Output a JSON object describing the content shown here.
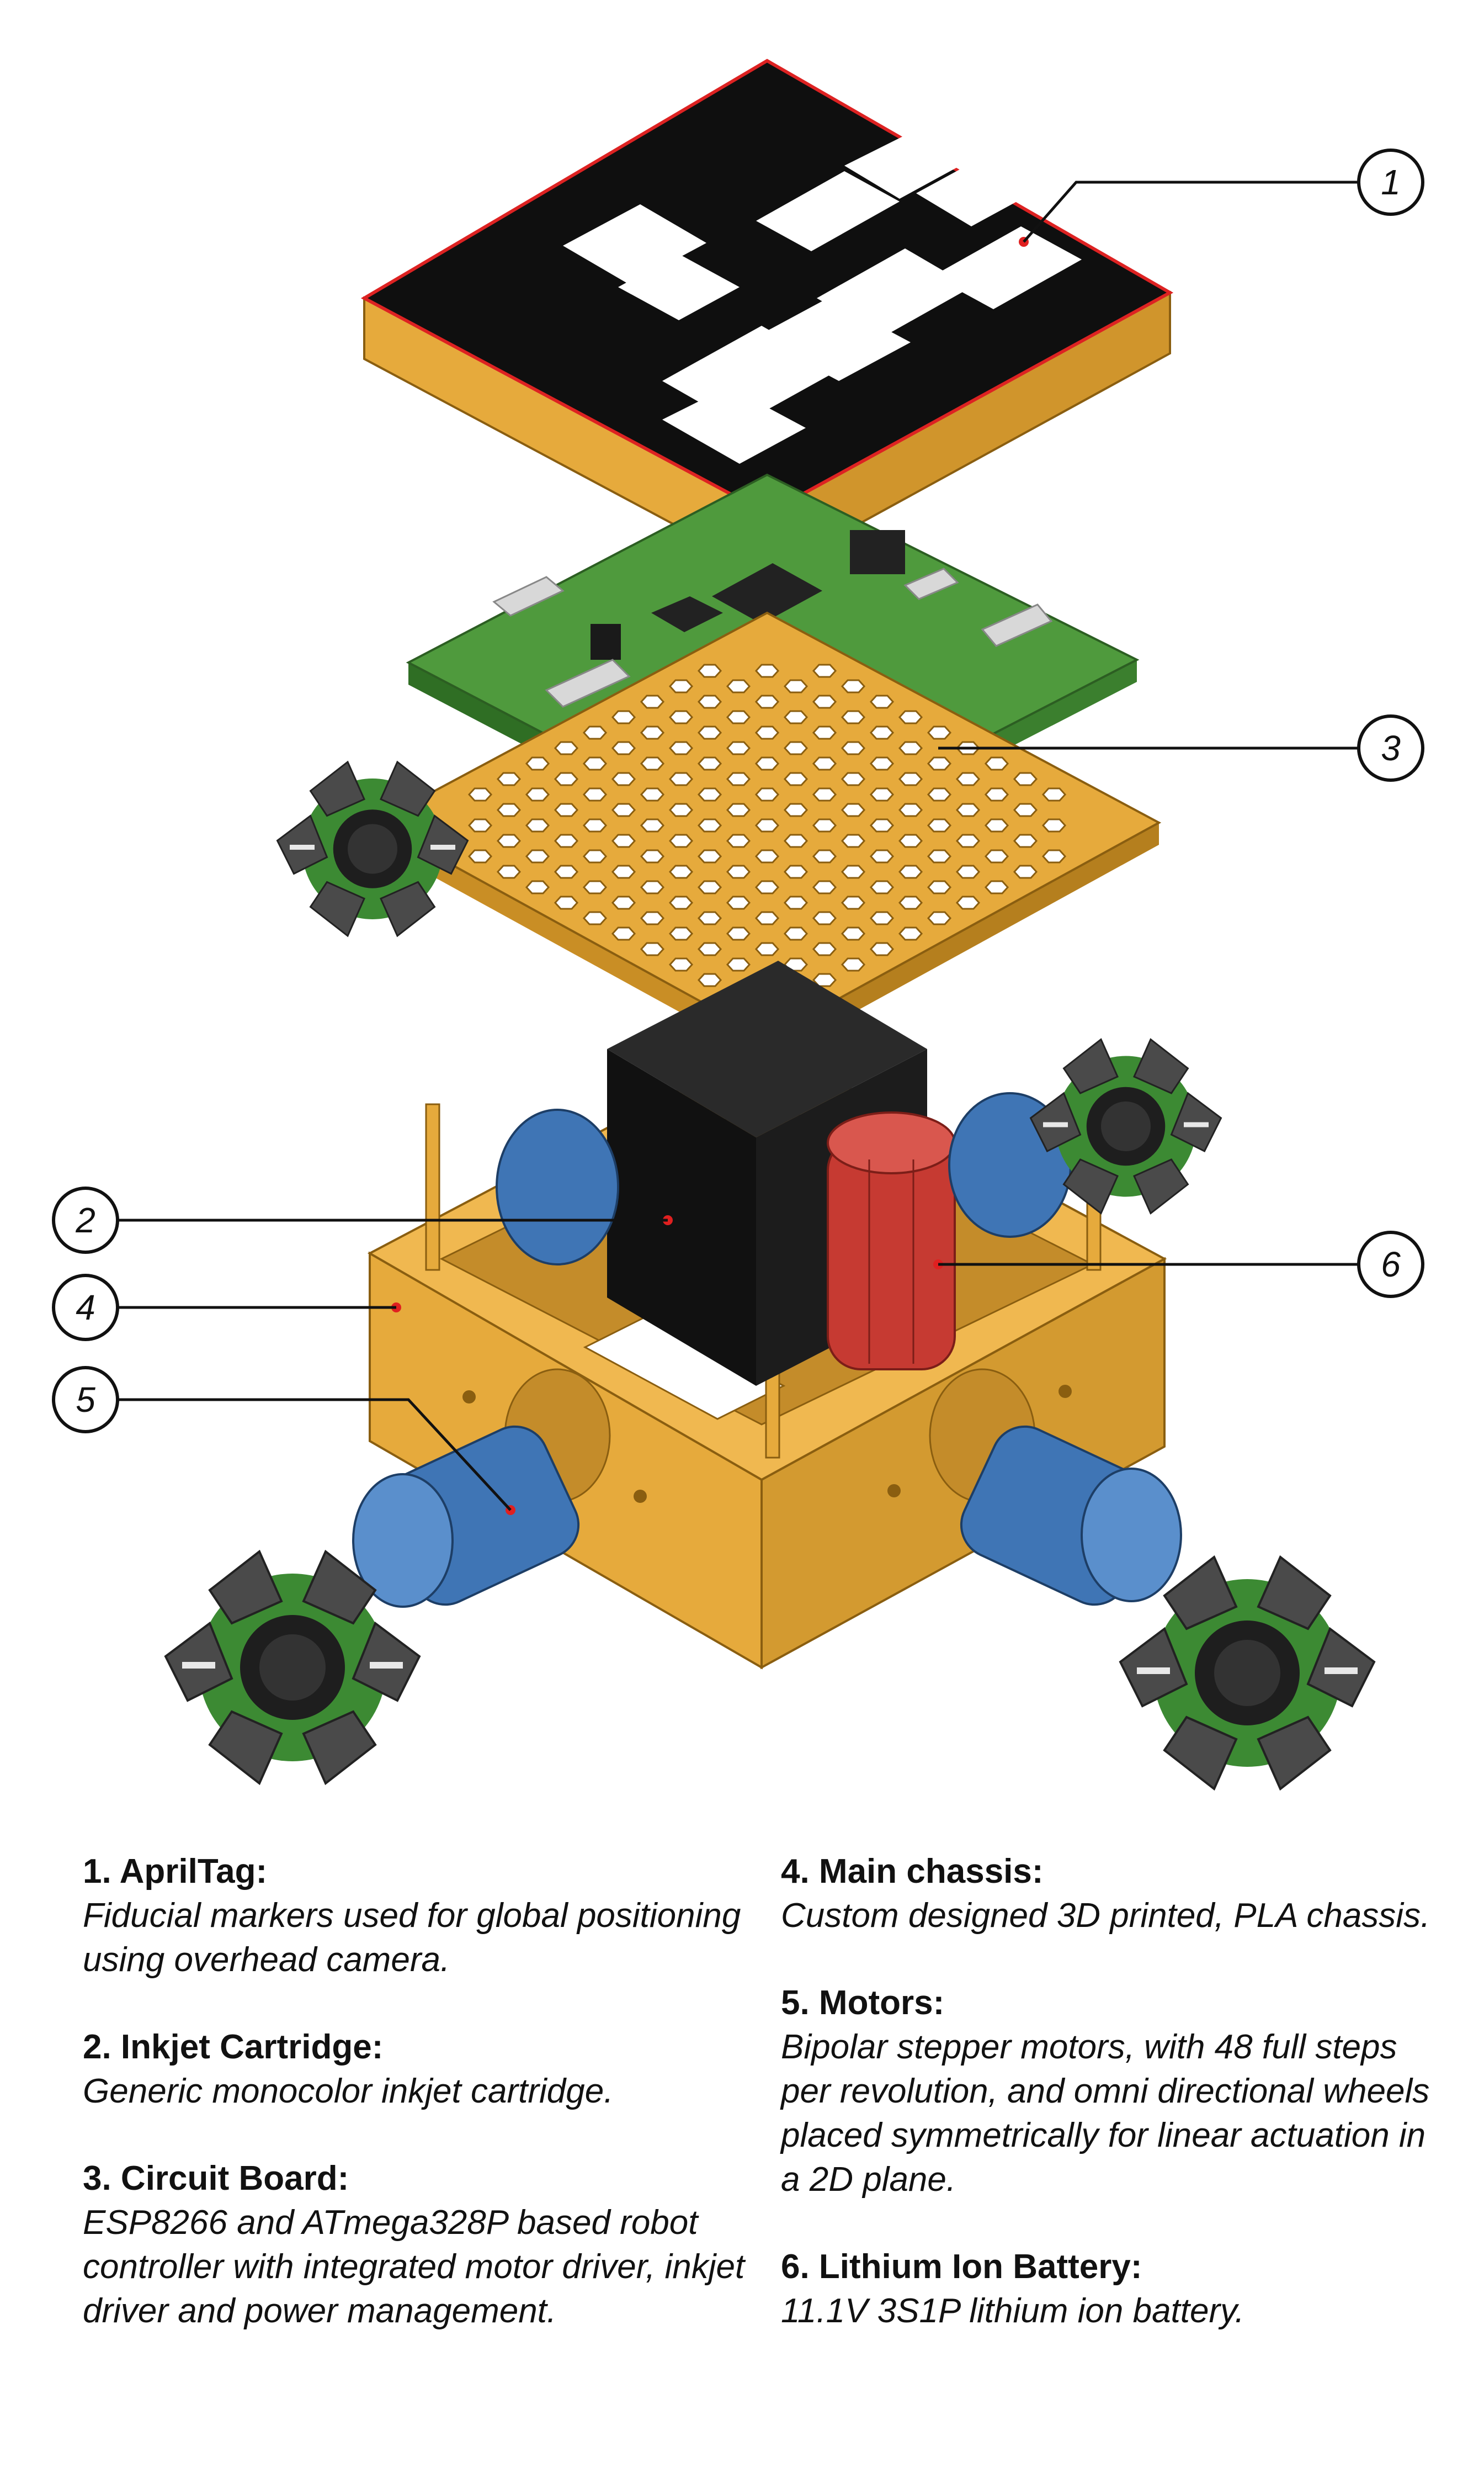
{
  "colors": {
    "pla": "#e6aa3c",
    "pla_dark": "#b57f1e",
    "pcb": "#4f9a3d",
    "motor": "#3f75b5",
    "battery": "#c63a32",
    "cartridge": "#111111",
    "tire": "#4a4a4a",
    "marker": "#e02020"
  },
  "callouts": [
    {
      "id": "1",
      "label": "1"
    },
    {
      "id": "2",
      "label": "2"
    },
    {
      "id": "3",
      "label": "3"
    },
    {
      "id": "4",
      "label": "4"
    },
    {
      "id": "5",
      "label": "5"
    },
    {
      "id": "6",
      "label": "6"
    }
  ],
  "legend": [
    {
      "title": "1. AprilTag:",
      "description": "Fiducial markers used for global positioning using overhead camera."
    },
    {
      "title": "2. Inkjet Cartridge:",
      "description": "Generic monocolor inkjet cartridge."
    },
    {
      "title": "3. Circuit Board:",
      "description": "ESP8266 and ATmega328P based robot controller with integrated motor driver, inkjet driver and power management."
    },
    {
      "title": "4. Main chassis:",
      "description": "Custom designed 3D printed, PLA chassis."
    },
    {
      "title": "5. Motors:",
      "description": "Bipolar stepper motors, with 48 full steps per revolution, and omni directional wheels placed symmetrically for linear actuation in a 2D plane."
    },
    {
      "title": "6. Lithium Ion Battery:",
      "description": "11.1V 3S1P lithium ion battery."
    }
  ]
}
